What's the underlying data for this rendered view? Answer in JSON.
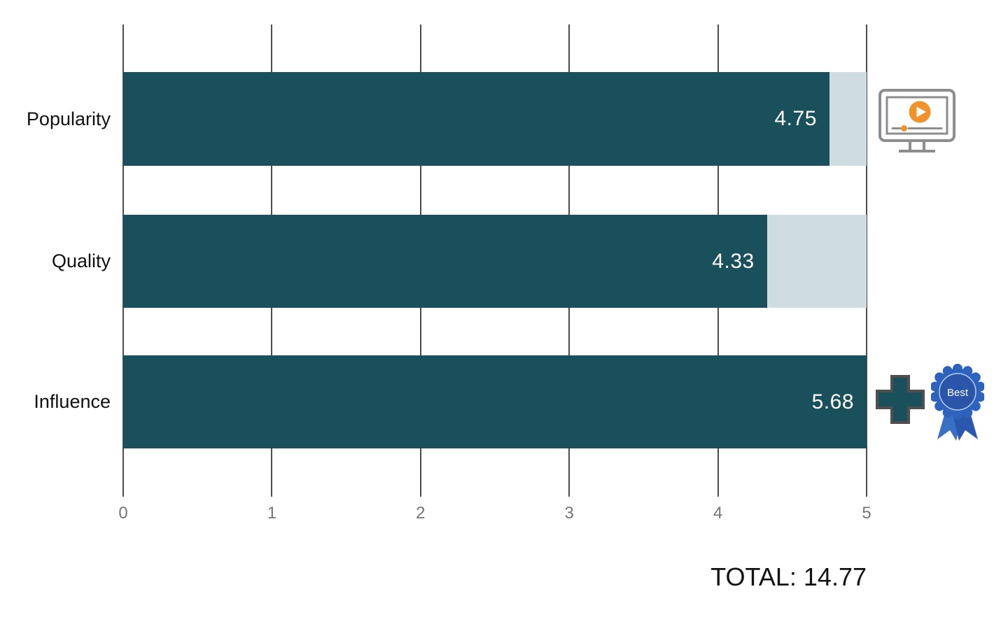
{
  "chart_data": {
    "type": "bar",
    "orientation": "horizontal",
    "title": "",
    "xlabel": "",
    "ylabel": "",
    "categories": [
      "Popularity",
      "Quality",
      "Influence"
    ],
    "values": [
      4.75,
      4.33,
      5.68
    ],
    "xlim": [
      0,
      5
    ],
    "x_ticks": [
      "0",
      "1",
      "2",
      "3",
      "4",
      "5"
    ],
    "grid": "vertical-gridlines-on",
    "legend": "none",
    "total": 14.77,
    "colors": {
      "bar_fill": "#1a4f5c",
      "bar_track": "#cfdde2",
      "gridline": "#4c4c4c",
      "tick_text": "#757575",
      "value_text": "#ffffff",
      "label_text": "#111111",
      "play_orange": "#f0932d",
      "monitor_gray": "#8d8d8d",
      "ribbon_blue": "#2e63bd"
    }
  },
  "rows": [
    {
      "label": "Popularity",
      "value": "4.75",
      "percent": 95
    },
    {
      "label": "Quality",
      "value": "4.33",
      "percent": 86.6
    },
    {
      "label": "Influence",
      "value": "5.68",
      "percent": 100
    }
  ],
  "ticks": [
    "0",
    "1",
    "2",
    "3",
    "4",
    "5"
  ],
  "total": {
    "label": "TOTAL: 14.77"
  },
  "icons": {
    "video_player": "video-player-icon",
    "plus": "plus-icon",
    "award_ribbon": "award-ribbon-icon",
    "award_ribbon_label": "Best"
  }
}
